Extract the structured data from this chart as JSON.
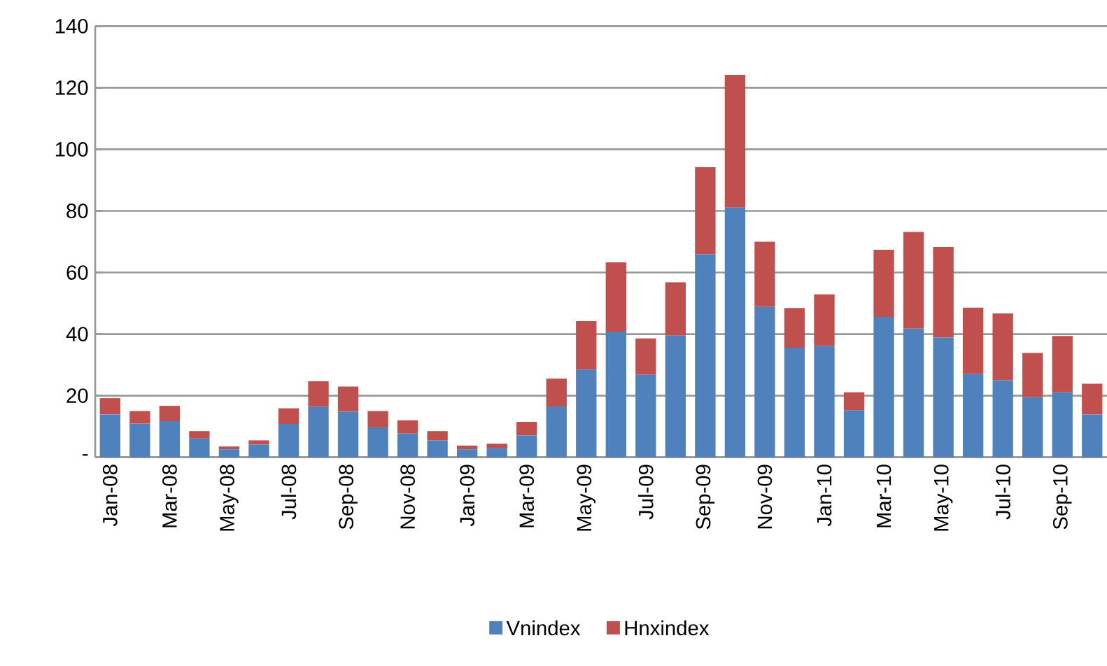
{
  "chart_data": {
    "type": "bar",
    "stacked": true,
    "categories": [
      "Jan-08",
      null,
      "Mar-08",
      null,
      "May-08",
      null,
      "Jul-08",
      null,
      "Sep-08",
      null,
      "Nov-08",
      null,
      "Jan-09",
      null,
      "Mar-09",
      null,
      "May-09",
      null,
      "Jul-09",
      null,
      "Sep-09",
      null,
      "Nov-09",
      null,
      "Jan-10",
      null,
      "Mar-10",
      null,
      "May-10",
      null,
      "Jul-10",
      null,
      "Sep-10",
      null
    ],
    "series": [
      {
        "name": "Vnindex",
        "color": "#4f81bd",
        "values": [
          13.9,
          10.9,
          11.7,
          6.1,
          2.6,
          4.1,
          10.8,
          16.4,
          14.8,
          9.7,
          7.7,
          5.5,
          2.6,
          2.9,
          7.1,
          16.5,
          28.5,
          40.8,
          26.8,
          39.5,
          65.9,
          81.1,
          48.8,
          35.6,
          36.1,
          15.3,
          45.6,
          41.8,
          38.9,
          27.0,
          25.0,
          19.5,
          21.1,
          13.9
        ]
      },
      {
        "name": "Hnxindex",
        "color": "#c0504d",
        "values": [
          5.3,
          4.1,
          5.0,
          2.4,
          0.9,
          1.4,
          5.1,
          8.3,
          8.2,
          5.3,
          4.3,
          3.0,
          1.2,
          1.5,
          4.4,
          9.0,
          15.7,
          22.5,
          11.8,
          17.3,
          28.3,
          43.1,
          21.2,
          12.9,
          16.8,
          5.8,
          21.8,
          31.4,
          29.4,
          21.6,
          21.7,
          14.4,
          18.3,
          10.0
        ]
      }
    ],
    "ylim": [
      0,
      140
    ],
    "yticks": [
      {
        "value": 0,
        "label": "-"
      },
      20,
      40,
      60,
      80,
      100,
      120,
      140
    ],
    "grid": "y",
    "legend": "bottom"
  }
}
